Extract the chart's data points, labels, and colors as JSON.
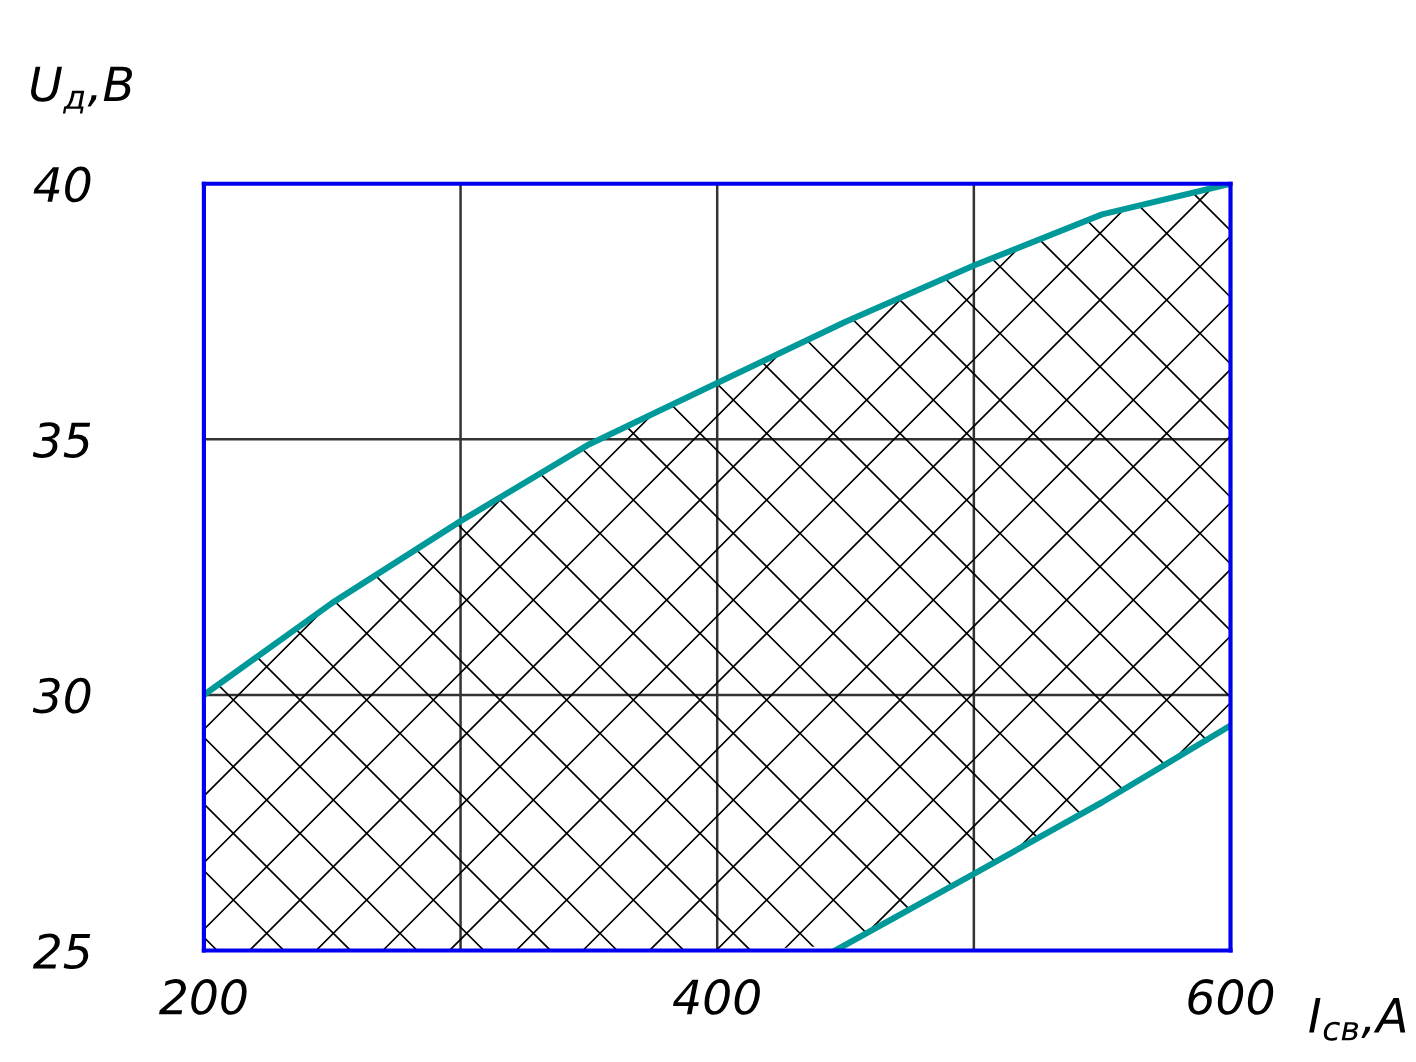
{
  "chart_data": {
    "type": "line",
    "xlabel": "I$_{св}$,A",
    "ylabel": "U$_{д}$,B",
    "xlim": [
      200,
      600
    ],
    "ylim": [
      25,
      40
    ],
    "xticks": [
      200,
      {
        "value": 300,
        "label": null
      },
      400,
      {
        "value": 500,
        "label": null
      },
      600
    ],
    "yticks": [
      25,
      30,
      35,
      40
    ],
    "grid": true,
    "legend": false,
    "series": [
      {
        "color": "#009999",
        "x": [
          200,
          250,
          300,
          350,
          400,
          450,
          500,
          550,
          600
        ],
        "values": [
          30,
          31.8,
          33.4,
          34.9,
          36.1,
          37.3,
          38.4,
          39.4,
          40
        ],
        "lower": [
          25,
          25,
          25,
          25,
          25,
          25.1,
          26.5,
          27.9,
          29.4
        ],
        "upper": [
          30,
          31.8,
          33.4,
          34.9,
          36.1,
          37.3,
          38.4,
          39.4,
          40
        ]
      },
      {
        "color": "#009999",
        "x": [
          446,
          500,
          550,
          600
        ],
        "values": [
          25,
          26.5,
          27.9,
          29.4
        ]
      }
    ]
  }
}
